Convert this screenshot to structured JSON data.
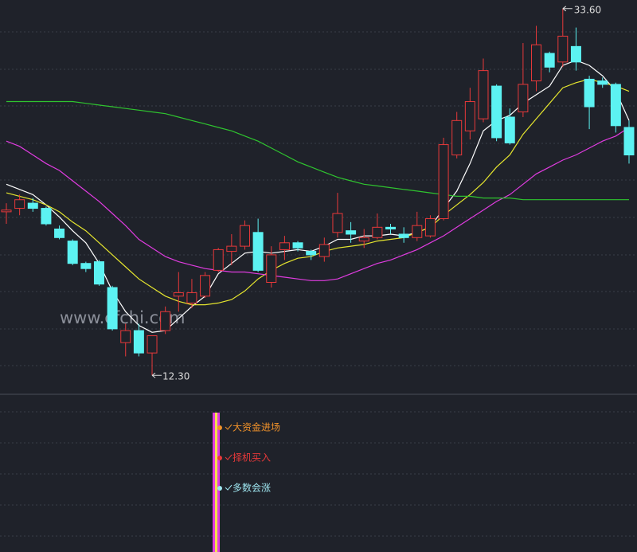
{
  "chart_data": {
    "type": "candlestick",
    "watermark": "www.cfchi.com",
    "ylim": [
      11.2,
      34.1
    ],
    "up_color": "#e8393a",
    "down_color": "#5cf2f2",
    "open": [
      21.8,
      22.0,
      22.3,
      22.0,
      20.8,
      20.1,
      18.8,
      18.9,
      17.4,
      14.2,
      14.9,
      13.6,
      14.9,
      16.9,
      16.5,
      16.9,
      18.4,
      19.5,
      19.8,
      20.6,
      17.7,
      19.6,
      20.0,
      19.5,
      19.2,
      20.6,
      20.7,
      20.1,
      20.3,
      20.9,
      20.5,
      20.3,
      20.4,
      21.4,
      25.1,
      26.5,
      27.2,
      29.1,
      27.3,
      27.6,
      29.4,
      31.0,
      30.5,
      31.4,
      29.5,
      29.4,
      29.2,
      26.7
    ],
    "high": [
      22.3,
      22.8,
      22.6,
      22.1,
      21.0,
      20.2,
      18.9,
      19.0,
      17.5,
      15.3,
      15.3,
      14.6,
      16.3,
      18.3,
      17.9,
      18.3,
      19.7,
      20.5,
      21.3,
      21.4,
      19.8,
      20.4,
      20.1,
      19.6,
      20.3,
      22.9,
      21.2,
      20.8,
      21.7,
      21.1,
      20.9,
      21.8,
      21.6,
      26.1,
      27.6,
      29.0,
      30.7,
      29.2,
      27.8,
      31.6,
      32.6,
      31.1,
      33.6,
      32.5,
      29.7,
      29.6,
      29.3,
      27.1
    ],
    "low": [
      21.1,
      21.6,
      21.8,
      21.0,
      20.2,
      18.7,
      18.3,
      17.5,
      14.9,
      13.4,
      13.4,
      12.3,
      14.7,
      16.0,
      16.2,
      16.8,
      18.3,
      18.7,
      19.6,
      18.3,
      17.4,
      19.0,
      19.5,
      19.0,
      18.9,
      20.3,
      20.0,
      19.7,
      20.2,
      20.5,
      20.0,
      20.1,
      20.3,
      21.3,
      24.9,
      26.0,
      27.0,
      25.9,
      25.7,
      27.3,
      28.8,
      29.9,
      30.2,
      30.0,
      26.6,
      29.0,
      26.4,
      24.6
    ],
    "close": [
      21.9,
      22.5,
      22.0,
      21.1,
      20.3,
      18.8,
      18.5,
      17.6,
      15.0,
      14.9,
      13.6,
      14.6,
      16.0,
      17.1,
      17.1,
      18.1,
      19.6,
      19.8,
      21.0,
      18.4,
      19.3,
      20.0,
      19.7,
      19.3,
      19.9,
      21.7,
      20.5,
      20.3,
      20.9,
      20.8,
      20.3,
      21.0,
      21.4,
      25.7,
      27.1,
      28.2,
      30.0,
      26.1,
      25.8,
      29.2,
      31.5,
      30.2,
      32.0,
      30.5,
      27.9,
      29.2,
      26.8,
      25.1
    ],
    "series": [
      {
        "color": "#ffffff",
        "values": [
          23.4,
          23.1,
          22.8,
          22.2,
          21.5,
          20.7,
          20.0,
          18.8,
          17.2,
          16.0,
          15.2,
          14.8,
          14.9,
          15.6,
          16.3,
          16.9,
          18.2,
          18.8,
          19.4,
          19.5,
          19.4,
          19.5,
          19.6,
          19.5,
          19.8,
          20.2,
          20.2,
          20.4,
          20.4,
          20.5,
          20.4,
          20.6,
          20.9,
          22.0,
          23.0,
          24.6,
          26.5,
          27.1,
          27.4,
          28.1,
          28.6,
          29.1,
          30.3,
          30.6,
          30.3,
          29.7,
          28.8,
          27.1
        ]
      },
      {
        "color": "#e6e62e",
        "values": [
          22.9,
          22.7,
          22.5,
          22.2,
          21.8,
          21.2,
          20.7,
          20.0,
          19.3,
          18.6,
          17.9,
          17.4,
          16.9,
          16.6,
          16.4,
          16.4,
          16.5,
          16.7,
          17.2,
          17.9,
          18.4,
          18.8,
          19.1,
          19.2,
          19.5,
          19.7,
          19.8,
          19.9,
          20.1,
          20.2,
          20.3,
          20.6,
          20.9,
          21.6,
          22.2,
          22.8,
          23.5,
          24.4,
          25.1,
          26.3,
          27.2,
          28.1,
          29.0,
          29.3,
          29.5,
          29.3,
          29.1,
          28.8
        ]
      },
      {
        "color": "#e03ce0",
        "values": [
          25.9,
          25.6,
          25.1,
          24.6,
          24.2,
          23.6,
          23.0,
          22.4,
          21.7,
          21.0,
          20.2,
          19.7,
          19.2,
          18.9,
          18.7,
          18.5,
          18.4,
          18.3,
          18.3,
          18.2,
          18.1,
          18.0,
          17.9,
          17.8,
          17.8,
          17.9,
          18.2,
          18.5,
          18.8,
          19.0,
          19.3,
          19.6,
          20.0,
          20.4,
          20.9,
          21.4,
          21.9,
          22.4,
          22.8,
          23.4,
          24.0,
          24.4,
          24.8,
          25.1,
          25.5,
          25.9,
          26.2,
          26.7
        ]
      },
      {
        "color": "#2fc42f",
        "values": [
          28.2,
          28.2,
          28.2,
          28.2,
          28.2,
          28.2,
          28.1,
          28.0,
          27.9,
          27.8,
          27.7,
          27.6,
          27.5,
          27.3,
          27.1,
          26.9,
          26.7,
          26.5,
          26.2,
          25.9,
          25.5,
          25.1,
          24.7,
          24.4,
          24.1,
          23.8,
          23.6,
          23.4,
          23.3,
          23.2,
          23.1,
          23.0,
          22.9,
          22.8,
          22.7,
          22.7,
          22.6,
          22.6,
          22.6,
          22.5,
          22.5,
          22.5,
          22.5,
          22.5,
          22.5,
          22.5,
          22.5,
          22.5
        ]
      }
    ],
    "low_label": {
      "value": 12.3,
      "label": "12.30"
    },
    "high_label": {
      "value": 33.6,
      "label": "33.60"
    },
    "signals": [
      {
        "label": "大资金进场",
        "color": "#f0922a"
      },
      {
        "label": "择机买入",
        "color": "#e8393a"
      },
      {
        "label": "多数会涨",
        "color": "#9fe6f0"
      }
    ]
  }
}
